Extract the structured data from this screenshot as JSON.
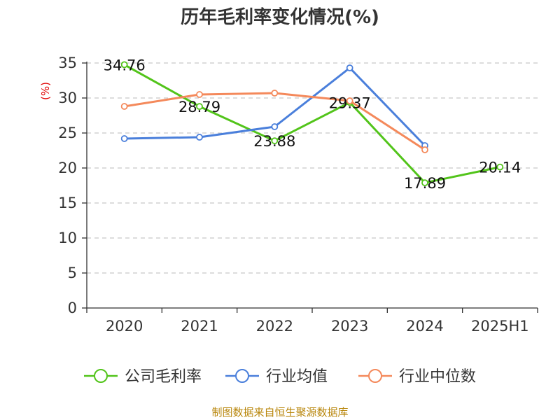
{
  "chart_data": {
    "type": "line",
    "title": "历年毛利率变化情况(%)",
    "ylabel": "(%)",
    "ylim": [
      0,
      35
    ],
    "yticks": [
      0,
      5,
      10,
      15,
      20,
      25,
      30,
      35
    ],
    "categories": [
      "2020",
      "2021",
      "2022",
      "2023",
      "2024",
      "2025H1"
    ],
    "grid": true,
    "legend_position": "bottom",
    "series": [
      {
        "name": "公司毛利率",
        "color": "#52c41a",
        "values": [
          34.76,
          28.79,
          23.88,
          29.37,
          17.89,
          20.14
        ],
        "labels": [
          "34.76",
          "28.79",
          "23.88",
          "29.37",
          "17.89",
          "20.14"
        ]
      },
      {
        "name": "行业均值",
        "color": "#4a7fdb",
        "values": [
          24.2,
          24.4,
          25.9,
          34.3,
          23.2,
          null
        ]
      },
      {
        "name": "行业中位数",
        "color": "#f4895b",
        "values": [
          28.8,
          30.5,
          30.7,
          29.6,
          22.6,
          null
        ]
      }
    ]
  },
  "source": "制图数据来自恒生聚源数据库",
  "colors": {
    "axis": "#333333",
    "grid": "#c8c8c8",
    "ylabel": "#e00000"
  }
}
